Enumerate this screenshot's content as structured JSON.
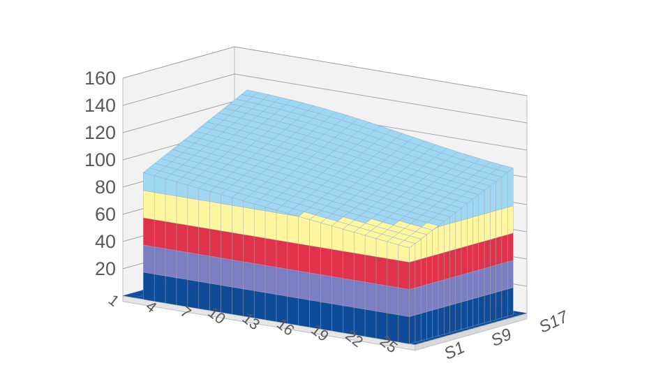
{
  "chart_data": {
    "type": "surface",
    "title": "",
    "xlabel": "",
    "ylabel": "",
    "zlim": [
      0,
      160
    ],
    "y_ticks": [
      20,
      40,
      60,
      80,
      100,
      120,
      140,
      160
    ],
    "x_categories": [
      "1",
      "4",
      "7",
      "10",
      "13",
      "16",
      "19",
      "22",
      "25"
    ],
    "series_ticks": [
      "S1",
      "S9",
      "S17"
    ],
    "band_ranges": [
      {
        "range": "0-20",
        "color": "#0e4c9a"
      },
      {
        "range": "20-40",
        "color": "#7b7fc1"
      },
      {
        "range": "40-60",
        "color": "#e0324a"
      },
      {
        "range": "60-80",
        "color": "#fff79f"
      },
      {
        "range": "80-100",
        "color": "#9fd6f2"
      },
      {
        "range": "100-120",
        "color": "#9fd6f2"
      },
      {
        "range": "120-140",
        "color": "#9fd6f2"
      },
      {
        "range": "140-160",
        "color": "#9fd6f2"
      }
    ],
    "surface": {
      "front_edge_start": 95,
      "front_edge_end": 70,
      "back_edge_start": 136,
      "back_edge_end": 113,
      "description_note": ""
    },
    "grid": true
  }
}
